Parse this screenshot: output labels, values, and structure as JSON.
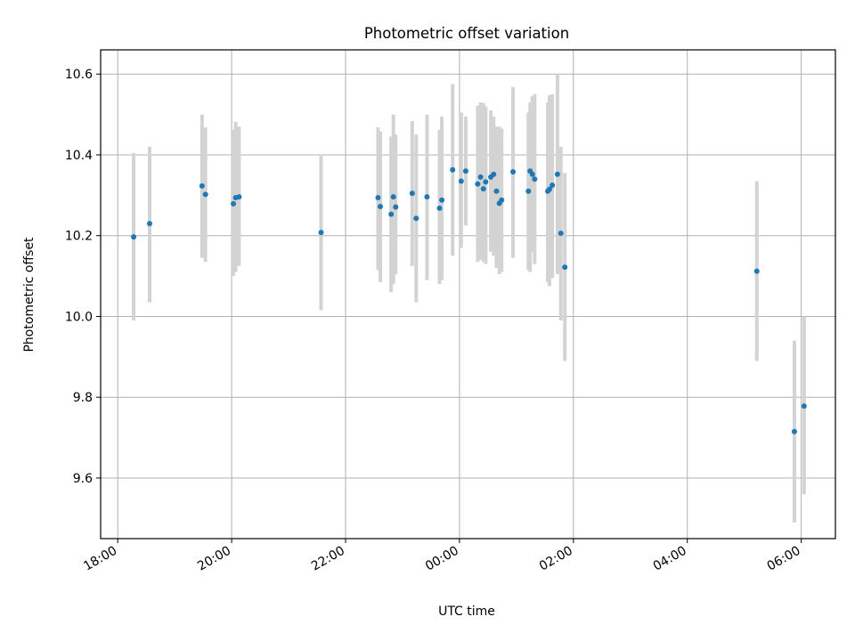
{
  "chart_data": {
    "type": "scatter",
    "title": "Photometric offset variation",
    "xlabel": "UTC time",
    "ylabel": "Photometric offset",
    "x_unit": "hours",
    "xlim": [
      -6.3,
      6.6
    ],
    "ylim": [
      9.45,
      10.66
    ],
    "x_ticks": [
      {
        "value": -6,
        "label": "18:00"
      },
      {
        "value": -4,
        "label": "20:00"
      },
      {
        "value": -2,
        "label": "22:00"
      },
      {
        "value": 0,
        "label": "00:00"
      },
      {
        "value": 2,
        "label": "02:00"
      },
      {
        "value": 4,
        "label": "04:00"
      },
      {
        "value": 6,
        "label": "06:00"
      }
    ],
    "y_ticks": [
      {
        "value": 9.6,
        "label": "9.6"
      },
      {
        "value": 9.8,
        "label": "9.8"
      },
      {
        "value": 10.0,
        "label": "10.0"
      },
      {
        "value": 10.2,
        "label": "10.2"
      },
      {
        "value": 10.4,
        "label": "10.4"
      },
      {
        "value": 10.6,
        "label": "10.6"
      }
    ],
    "grid": true,
    "colors": {
      "points": "#1f77b4",
      "errorbars": "#d3d3d3",
      "grid": "#b0b0b0"
    },
    "points": [
      {
        "x": -5.72,
        "y": 10.197,
        "lo": 9.99,
        "hi": 10.405
      },
      {
        "x": -5.44,
        "y": 10.23,
        "lo": 10.035,
        "hi": 10.42
      },
      {
        "x": -4.52,
        "y": 10.323,
        "lo": 10.145,
        "hi": 10.5
      },
      {
        "x": -4.46,
        "y": 10.302,
        "lo": 10.135,
        "hi": 10.468
      },
      {
        "x": -3.97,
        "y": 10.279,
        "lo": 10.1,
        "hi": 10.462
      },
      {
        "x": -3.93,
        "y": 10.294,
        "lo": 10.11,
        "hi": 10.482
      },
      {
        "x": -3.87,
        "y": 10.296,
        "lo": 10.125,
        "hi": 10.47
      },
      {
        "x": -2.43,
        "y": 10.208,
        "lo": 10.015,
        "hi": 10.398
      },
      {
        "x": -1.43,
        "y": 10.294,
        "lo": 10.115,
        "hi": 10.468
      },
      {
        "x": -1.39,
        "y": 10.272,
        "lo": 10.085,
        "hi": 10.458
      },
      {
        "x": -1.2,
        "y": 10.253,
        "lo": 10.06,
        "hi": 10.445
      },
      {
        "x": -1.16,
        "y": 10.296,
        "lo": 10.08,
        "hi": 10.5
      },
      {
        "x": -1.12,
        "y": 10.271,
        "lo": 10.105,
        "hi": 10.45
      },
      {
        "x": -0.83,
        "y": 10.305,
        "lo": 10.125,
        "hi": 10.484
      },
      {
        "x": -0.76,
        "y": 10.243,
        "lo": 10.035,
        "hi": 10.45
      },
      {
        "x": -0.57,
        "y": 10.296,
        "lo": 10.09,
        "hi": 10.5
      },
      {
        "x": -0.35,
        "y": 10.268,
        "lo": 10.08,
        "hi": 10.462
      },
      {
        "x": -0.31,
        "y": 10.288,
        "lo": 10.09,
        "hi": 10.495
      },
      {
        "x": -0.12,
        "y": 10.363,
        "lo": 10.15,
        "hi": 10.575
      },
      {
        "x": 0.03,
        "y": 10.335,
        "lo": 10.17,
        "hi": 10.505
      },
      {
        "x": 0.11,
        "y": 10.36,
        "lo": 10.225,
        "hi": 10.495
      },
      {
        "x": 0.32,
        "y": 10.328,
        "lo": 10.135,
        "hi": 10.522
      },
      {
        "x": 0.37,
        "y": 10.345,
        "lo": 10.14,
        "hi": 10.53
      },
      {
        "x": 0.42,
        "y": 10.316,
        "lo": 10.135,
        "hi": 10.528
      },
      {
        "x": 0.46,
        "y": 10.333,
        "lo": 10.13,
        "hi": 10.52
      },
      {
        "x": 0.55,
        "y": 10.345,
        "lo": 10.16,
        "hi": 10.51
      },
      {
        "x": 0.6,
        "y": 10.352,
        "lo": 10.15,
        "hi": 10.495
      },
      {
        "x": 0.65,
        "y": 10.31,
        "lo": 10.12,
        "hi": 10.47
      },
      {
        "x": 0.7,
        "y": 10.28,
        "lo": 10.105,
        "hi": 10.47
      },
      {
        "x": 0.74,
        "y": 10.288,
        "lo": 10.11,
        "hi": 10.465
      },
      {
        "x": 0.94,
        "y": 10.358,
        "lo": 10.145,
        "hi": 10.568
      },
      {
        "x": 1.21,
        "y": 10.31,
        "lo": 10.115,
        "hi": 10.505
      },
      {
        "x": 1.24,
        "y": 10.36,
        "lo": 10.11,
        "hi": 10.53
      },
      {
        "x": 1.28,
        "y": 10.352,
        "lo": 10.16,
        "hi": 10.545
      },
      {
        "x": 1.32,
        "y": 10.34,
        "lo": 10.13,
        "hi": 10.55
      },
      {
        "x": 1.55,
        "y": 10.31,
        "lo": 10.085,
        "hi": 10.53
      },
      {
        "x": 1.58,
        "y": 10.315,
        "lo": 10.075,
        "hi": 10.548
      },
      {
        "x": 1.63,
        "y": 10.325,
        "lo": 10.095,
        "hi": 10.55
      },
      {
        "x": 1.72,
        "y": 10.352,
        "lo": 10.105,
        "hi": 10.6
      },
      {
        "x": 1.78,
        "y": 10.206,
        "lo": 9.99,
        "hi": 10.42
      },
      {
        "x": 1.85,
        "y": 10.122,
        "lo": 9.89,
        "hi": 10.355
      },
      {
        "x": 5.22,
        "y": 10.112,
        "lo": 9.89,
        "hi": 10.335
      },
      {
        "x": 5.88,
        "y": 9.715,
        "lo": 9.49,
        "hi": 9.94
      },
      {
        "x": 6.05,
        "y": 9.778,
        "lo": 9.56,
        "hi": 10.0
      }
    ]
  }
}
